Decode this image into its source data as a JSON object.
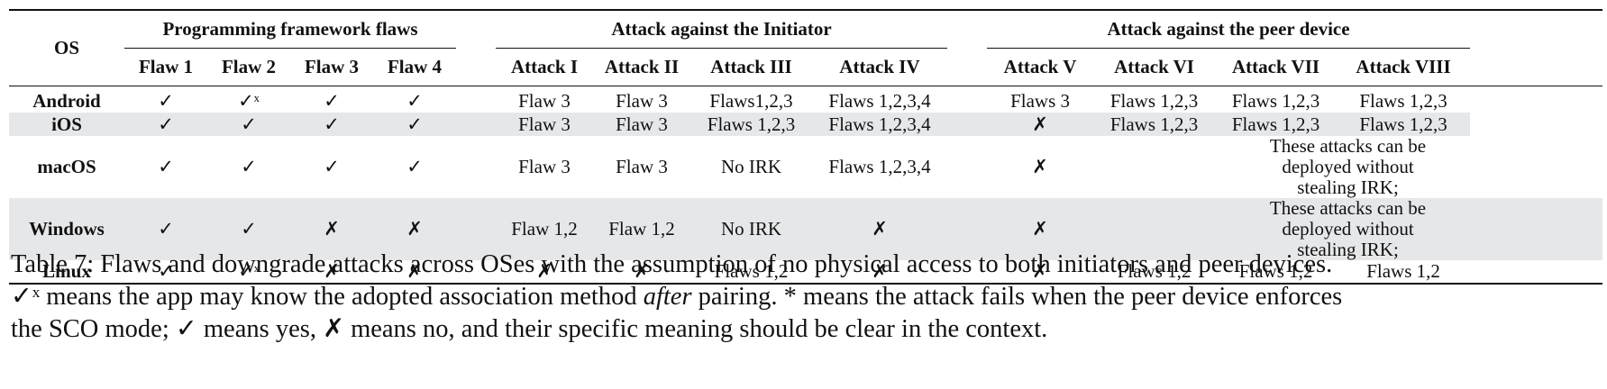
{
  "table": {
    "os_header": "OS",
    "groups": [
      "Programming framework flaws",
      "Attack against the Initiator",
      "Attack against the peer device"
    ],
    "sub_headers": [
      "Flaw 1",
      "Flaw 2",
      "Flaw 3",
      "Flaw 4",
      "Attack I",
      "Attack II",
      "Attack III",
      "Attack IV",
      "Attack V",
      "Attack VI",
      "Attack VII",
      "Attack VIII"
    ],
    "rows": [
      {
        "os": "Android",
        "cells": [
          "✓",
          "✓ˣ",
          "✓",
          "✓",
          "Flaw 3",
          "Flaw 3",
          "Flaws1,2,3",
          "Flaws 1,2,3,4",
          "Flaws 3",
          "Flaws 1,2,3",
          "Flaws 1,2,3",
          "Flaws 1,2,3"
        ]
      },
      {
        "os": "iOS",
        "cells": [
          "✓",
          "✓",
          "✓",
          "✓",
          "Flaw 3",
          "Flaw 3",
          "Flaws 1,2,3",
          "Flaws 1,2,3,4",
          "✗",
          "Flaws 1,2,3",
          "Flaws 1,2,3",
          "Flaws 1,2,3"
        ]
      },
      {
        "os": "macOS",
        "cells": [
          "✓",
          "✓",
          "✓",
          "✓",
          "Flaw 3",
          "Flaw 3",
          "No IRK",
          "Flaws 1,2,3,4",
          "✗"
        ],
        "span_text": "These attacks can be deployed without stealing IRK;"
      },
      {
        "os": "Windows",
        "cells": [
          "✓",
          "✓",
          "✗",
          "✗",
          "Flaw 1,2",
          "Flaw 1,2",
          "No IRK",
          "✗",
          "✗"
        ],
        "span_text": "These attacks can be deployed without stealing IRK;"
      },
      {
        "os": "Linux",
        "cells": [
          "✓",
          "✓ˣ",
          "✗",
          "✗",
          "✗",
          "✗",
          "Flaws 1,2",
          "✗",
          "✗",
          "Flaws 1,2",
          "Flaws 1,2",
          "Flaws 1,2"
        ]
      }
    ]
  },
  "caption": {
    "line1": "Table 7: Flaws and downgrade attacks across OSes with the assumption of no physical access to both initiators and peer devices.",
    "line2_a": " means the app may know the adopted association method ",
    "line2_em": "after",
    "line2_b": " pairing. * means the attack fails when the peer device enforces",
    "line3_a": "the SCO mode; ",
    "line3_b": " means yes, ",
    "line3_c": " means no, and their specific meaning should be clear in the context.",
    "glyph_maybe": "✓ˣ",
    "glyph_yes": "✓",
    "glyph_no": "✗"
  }
}
